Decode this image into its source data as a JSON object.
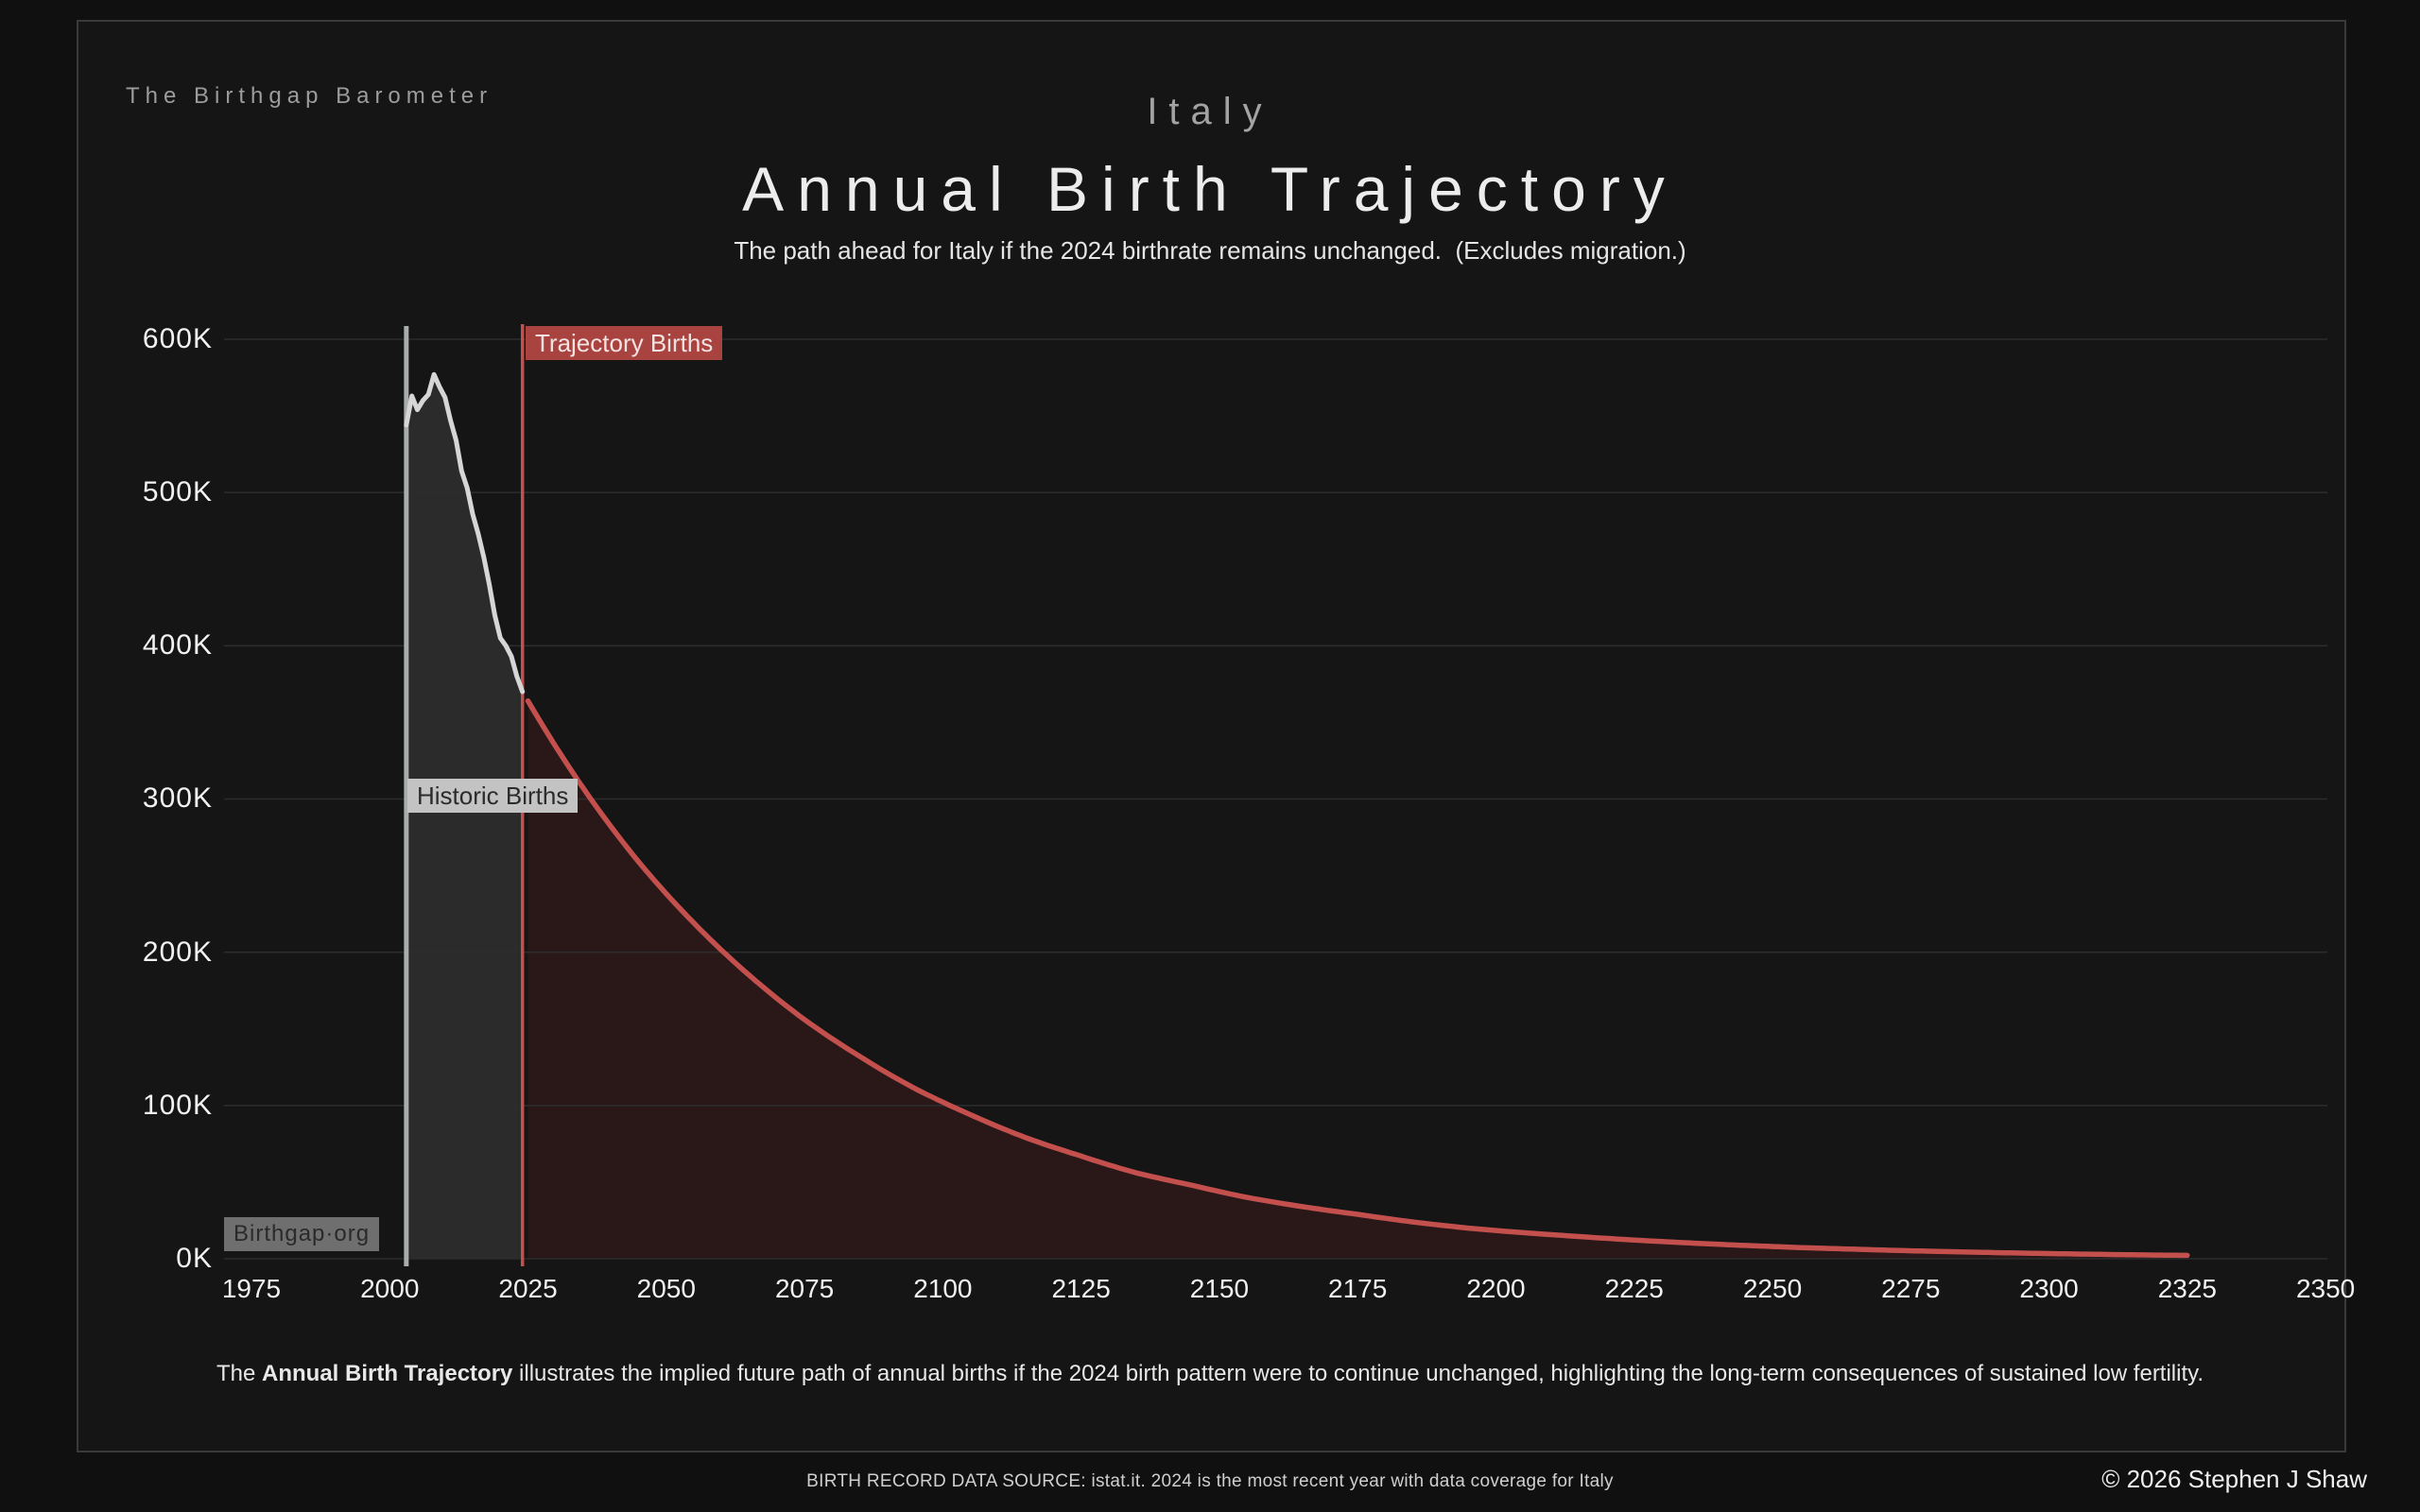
{
  "header": {
    "brand": "The Birthgap Barometer",
    "country": "Italy",
    "title": "Annual Birth Trajectory",
    "subtitle": "The path ahead for Italy if the 2024 birthrate remains unchanged.  (Excludes migration.)"
  },
  "caption": {
    "pre": "The ",
    "bold": "Annual Birth Trajectory",
    "post": " illustrates the implied future path of annual births if the 2024 birth pattern were to continue unchanged, highlighting the long-term consequences of sustained low fertility."
  },
  "footer": {
    "watermark": "Birthgap·org",
    "source": "BIRTH RECORD DATA SOURCE: istat.it. 2024 is the most recent year with data coverage for Italy",
    "copyright": "© 2026 Stephen J Shaw"
  },
  "colors": {
    "page_background": "#101010",
    "card_background": "#151515",
    "card_border": "#3a3a3a",
    "gridline": "#2d2d2d",
    "historic_line": "#d6d6d6",
    "historic_fill": "#2b2b2b",
    "historic_marker_line": "#a9adad",
    "trajectory_line": "#c4504e",
    "trajectory_fill": "#2a1818",
    "trajectory_label_background": "#a84340",
    "tick_text": "#f2f2f2"
  },
  "chart_data": {
    "type": "area",
    "title": "Annual Birth Trajectory",
    "region": "Italy",
    "unit": "annual births, thousands",
    "xlabel": "",
    "ylabel": "",
    "grid": "horizontal",
    "x_domain": [
      1975,
      2350
    ],
    "ylim": [
      0,
      600
    ],
    "x_ticks": [
      1975,
      2000,
      2025,
      2050,
      2075,
      2100,
      2125,
      2150,
      2175,
      2200,
      2225,
      2250,
      2275,
      2300,
      2325,
      2350
    ],
    "y_ticks": [
      {
        "value": 0,
        "label": "0K"
      },
      {
        "value": 100,
        "label": "100K"
      },
      {
        "value": 200,
        "label": "200K"
      },
      {
        "value": 300,
        "label": "300K"
      },
      {
        "value": 400,
        "label": "400K"
      },
      {
        "value": 500,
        "label": "500K"
      },
      {
        "value": 600,
        "label": "600K"
      }
    ],
    "series": [
      {
        "name": "Historic Births",
        "kind": "area",
        "interpolation": "linear",
        "points": [
          [
            2003,
            544
          ],
          [
            2004,
            563
          ],
          [
            2005,
            554
          ],
          [
            2006,
            560
          ],
          [
            2007,
            564
          ],
          [
            2008,
            577
          ],
          [
            2009,
            569
          ],
          [
            2010,
            562
          ],
          [
            2011,
            547
          ],
          [
            2012,
            534
          ],
          [
            2013,
            514
          ],
          [
            2014,
            503
          ],
          [
            2015,
            486
          ],
          [
            2016,
            473
          ],
          [
            2017,
            458
          ],
          [
            2018,
            440
          ],
          [
            2019,
            420
          ],
          [
            2020,
            405
          ],
          [
            2021,
            400
          ],
          [
            2022,
            393
          ],
          [
            2023,
            380
          ],
          [
            2024,
            370
          ]
        ]
      },
      {
        "name": "Trajectory Births",
        "kind": "area",
        "interpolation": "exponential",
        "points": [
          [
            2025,
            364
          ],
          [
            2035,
            307
          ],
          [
            2045,
            259
          ],
          [
            2055,
            219
          ],
          [
            2065,
            185
          ],
          [
            2075,
            156
          ],
          [
            2085,
            132
          ],
          [
            2095,
            111
          ],
          [
            2105,
            94
          ],
          [
            2115,
            79
          ],
          [
            2125,
            67
          ],
          [
            2135,
            56
          ],
          [
            2145,
            48
          ],
          [
            2155,
            40
          ],
          [
            2165,
            34
          ],
          [
            2175,
            29
          ],
          [
            2185,
            24
          ],
          [
            2195,
            20
          ],
          [
            2205,
            17
          ],
          [
            2215,
            14.5
          ],
          [
            2225,
            12.2
          ],
          [
            2235,
            10.3
          ],
          [
            2245,
            8.7
          ],
          [
            2255,
            7.3
          ],
          [
            2265,
            6.2
          ],
          [
            2275,
            5.2
          ],
          [
            2285,
            4.4
          ],
          [
            2295,
            3.7
          ],
          [
            2305,
            3.1
          ],
          [
            2315,
            2.6
          ],
          [
            2325,
            2.2
          ]
        ]
      }
    ],
    "markers": {
      "historic_start_line_year": 2003,
      "trajectory_start_line_year": 2024
    }
  }
}
